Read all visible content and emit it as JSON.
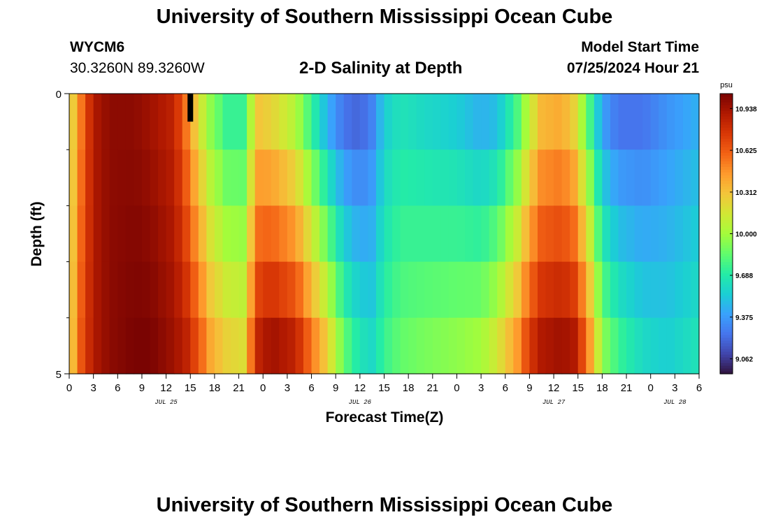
{
  "header": {
    "title": "University of Southern Mississippi Ocean Cube",
    "station_id": "WYCM6",
    "coordinates": "30.3260N  89.3260W",
    "subtitle": "2-D Salinity at Depth",
    "model_start_label": "Model Start Time",
    "model_start_value": "07/25/2024 Hour 21"
  },
  "footer": {
    "title": "University of Southern Mississippi Ocean Cube"
  },
  "chart_data": {
    "type": "heatmap",
    "title": "2-D Salinity at Depth",
    "xlabel": "Forecast Time(Z)",
    "ylabel": "Depth (ft)",
    "x_tick_labels": [
      "0",
      "3",
      "6",
      "9",
      "12",
      "15",
      "18",
      "21",
      "0",
      "3",
      "6",
      "9",
      "12",
      "15",
      "18",
      "21",
      "0",
      "3",
      "6",
      "9",
      "12",
      "15",
      "18",
      "21",
      "0",
      "3",
      "6"
    ],
    "date_labels": [
      {
        "text": "JUL 25",
        "hour": 12
      },
      {
        "text": "JUL 26",
        "hour": 36
      },
      {
        "text": "JUL 27",
        "hour": 60
      },
      {
        "text": "JUL 28",
        "hour": 75
      }
    ],
    "x_range_hours": [
      0,
      78
    ],
    "y_range_ft": [
      0,
      5
    ],
    "y_tick_labels": [
      {
        "value": 0,
        "text": "0"
      },
      {
        "value": 5,
        "text": "5"
      }
    ],
    "y_minor_ticks": [
      1,
      2,
      3,
      4
    ],
    "colorbar": {
      "unit": "psu",
      "min": 8.95,
      "max": 11.05,
      "tick_labels": [
        "10.938",
        "10.625",
        "10.312",
        "10.000",
        "9.688",
        "9.375",
        "9.062"
      ],
      "colors": [
        "#30123b",
        "#4145ab",
        "#4675ed",
        "#39a2fc",
        "#1bcfd4",
        "#24eca6",
        "#61fc6c",
        "#a4fc3b",
        "#d1e834",
        "#f3c63a",
        "#fe9b2d",
        "#f36315",
        "#d93806",
        "#b11901",
        "#7a0402"
      ]
    },
    "depth_layers_ft": [
      0.5,
      1.5,
      2.5,
      3.5,
      4.5
    ],
    "time_profile": {
      "hours": [
        0,
        1.5,
        3,
        5,
        8,
        10,
        13,
        14.5,
        16,
        17.5,
        19.5,
        21.5,
        22.5,
        23.5,
        25,
        28,
        30,
        32,
        34,
        36,
        37.5,
        39,
        41,
        44,
        48,
        51,
        53,
        55.5,
        57,
        58.5,
        61,
        62.5,
        64,
        66,
        68,
        71,
        74,
        78
      ],
      "surface_psu": [
        10.15,
        10.55,
        10.9,
        11.0,
        11.0,
        10.95,
        10.85,
        10.55,
        10.2,
        9.95,
        9.75,
        9.75,
        10.05,
        10.3,
        10.25,
        10.05,
        9.75,
        9.45,
        9.25,
        9.2,
        9.3,
        9.55,
        9.65,
        9.6,
        9.55,
        9.45,
        9.5,
        9.8,
        10.1,
        10.35,
        10.4,
        10.25,
        9.9,
        9.4,
        9.25,
        9.25,
        9.35,
        9.45
      ],
      "bottom_psu": [
        10.2,
        10.65,
        10.9,
        11.0,
        11.05,
        11.05,
        10.95,
        10.85,
        10.65,
        10.4,
        10.25,
        10.2,
        10.55,
        10.85,
        10.95,
        10.85,
        10.55,
        10.25,
        9.85,
        9.65,
        9.6,
        9.75,
        9.85,
        9.9,
        9.95,
        10.0,
        10.15,
        10.45,
        10.75,
        10.9,
        10.95,
        10.9,
        10.6,
        9.95,
        9.75,
        9.6,
        9.55,
        9.65
      ]
    },
    "min_marker": {
      "hour": 15,
      "depth_ft_range": [
        0,
        0.5
      ],
      "color": "#000000"
    }
  }
}
